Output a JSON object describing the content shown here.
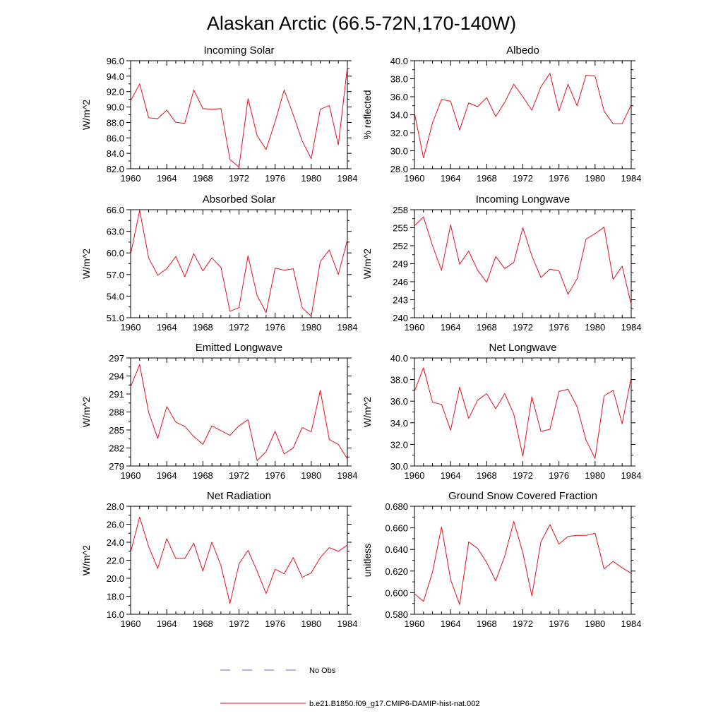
{
  "title": "Alaskan Arctic (66.5-72N,170-140W)",
  "colors": {
    "series": "#e8101c",
    "no_obs": "#5a6bd0",
    "axis": "#000000"
  },
  "legend": {
    "entries": [
      {
        "label": "No Obs",
        "style": "dashed",
        "color": "#5a6bd0"
      },
      {
        "label": "b.e21.B1850.f09_g17.CMIP6-DAMIP-hist-nat.002",
        "style": "solid",
        "color": "#e8101c"
      }
    ]
  },
  "chart_data": [
    {
      "type": "line",
      "title": "Incoming Solar",
      "ylabel": "W/m^2",
      "xlim": [
        1960,
        1984
      ],
      "ylim": [
        82,
        96
      ],
      "xticks": [
        1960,
        1964,
        1968,
        1972,
        1976,
        1980,
        1984
      ],
      "xtick_labels": [
        "1960",
        "1964",
        "1968",
        "1972",
        "1976",
        "1980",
        "1984"
      ],
      "yticks": [
        82,
        84,
        86,
        88,
        90,
        92,
        94,
        96
      ],
      "ytick_labels": [
        "82.0",
        "84.0",
        "86.0",
        "88.0",
        "90.0",
        "92.0",
        "94.0",
        "96.0"
      ],
      "series": [
        {
          "name": "b.e21.B1850.f09_g17.CMIP6-DAMIP-hist-nat.002",
          "x": [
            1960,
            1961,
            1962,
            1963,
            1964,
            1965,
            1966,
            1967,
            1968,
            1969,
            1970,
            1971,
            1972,
            1973,
            1974,
            1975,
            1976,
            1977,
            1978,
            1979,
            1980,
            1981,
            1982,
            1983,
            1984
          ],
          "y": [
            90.8,
            93.0,
            88.6,
            88.5,
            89.6,
            88.0,
            87.9,
            92.2,
            89.8,
            89.7,
            89.8,
            83.2,
            82.2,
            91.1,
            86.3,
            84.5,
            88.1,
            92.2,
            89.0,
            85.6,
            83.3,
            89.7,
            90.2,
            85.1,
            95.2
          ]
        }
      ]
    },
    {
      "type": "line",
      "title": "Albedo",
      "ylabel": "% reflected",
      "xlim": [
        1960,
        1984
      ],
      "ylim": [
        28,
        40
      ],
      "xticks": [
        1960,
        1964,
        1968,
        1972,
        1976,
        1980,
        1984
      ],
      "xtick_labels": [
        "1960",
        "1964",
        "1968",
        "1972",
        "1976",
        "1980",
        "1984"
      ],
      "yticks": [
        28,
        30,
        32,
        34,
        36,
        38,
        40
      ],
      "ytick_labels": [
        "28.0",
        "30.0",
        "32.0",
        "34.0",
        "36.0",
        "38.0",
        "40.0"
      ],
      "series": [
        {
          "name": "b.e21.B1850.f09_g17.CMIP6-DAMIP-hist-nat.002",
          "x": [
            1960,
            1961,
            1962,
            1963,
            1964,
            1965,
            1966,
            1967,
            1968,
            1969,
            1970,
            1971,
            1972,
            1973,
            1974,
            1975,
            1976,
            1977,
            1978,
            1979,
            1980,
            1981,
            1982,
            1983,
            1984
          ],
          "y": [
            34.2,
            29.2,
            33.1,
            35.7,
            35.5,
            32.3,
            35.3,
            34.9,
            35.9,
            33.8,
            35.4,
            37.4,
            36.0,
            34.5,
            37.1,
            38.6,
            34.4,
            37.4,
            35.0,
            38.4,
            38.3,
            34.4,
            33.0,
            33.0,
            35.1
          ]
        }
      ]
    },
    {
      "type": "line",
      "title": "Absorbed Solar",
      "ylabel": "W/m^2",
      "xlim": [
        1960,
        1984
      ],
      "ylim": [
        51,
        66
      ],
      "xticks": [
        1960,
        1964,
        1968,
        1972,
        1976,
        1980,
        1984
      ],
      "xtick_labels": [
        "1960",
        "1964",
        "1968",
        "1972",
        "1976",
        "1980",
        "1984"
      ],
      "yticks": [
        51,
        54,
        57,
        60,
        63,
        66
      ],
      "ytick_labels": [
        "51.0",
        "54.0",
        "57.0",
        "60.0",
        "63.0",
        "66.0"
      ],
      "series": [
        {
          "name": "b.e21.B1850.f09_g17.CMIP6-DAMIP-hist-nat.002",
          "x": [
            1960,
            1961,
            1962,
            1963,
            1964,
            1965,
            1966,
            1967,
            1968,
            1969,
            1970,
            1971,
            1972,
            1973,
            1974,
            1975,
            1976,
            1977,
            1978,
            1979,
            1980,
            1981,
            1982,
            1983,
            1984
          ],
          "y": [
            59.8,
            65.9,
            59.3,
            56.9,
            57.8,
            59.5,
            56.7,
            59.9,
            57.5,
            59.3,
            58.0,
            51.9,
            52.4,
            59.6,
            54.1,
            51.7,
            57.9,
            57.6,
            57.8,
            52.4,
            51.2,
            58.8,
            60.4,
            57.0,
            61.8
          ]
        }
      ]
    },
    {
      "type": "line",
      "title": "Incoming Longwave",
      "ylabel": "W/m^2",
      "xlim": [
        1960,
        1984
      ],
      "ylim": [
        240,
        258
      ],
      "xticks": [
        1960,
        1964,
        1968,
        1972,
        1976,
        1980,
        1984
      ],
      "xtick_labels": [
        "1960",
        "1964",
        "1968",
        "1972",
        "1976",
        "1980",
        "1984"
      ],
      "yticks": [
        240,
        243,
        246,
        249,
        252,
        255,
        258
      ],
      "ytick_labels": [
        "240",
        "243",
        "246",
        "249",
        "252",
        "255",
        "258"
      ],
      "series": [
        {
          "name": "b.e21.B1850.f09_g17.CMIP6-DAMIP-hist-nat.002",
          "x": [
            1960,
            1961,
            1962,
            1963,
            1964,
            1965,
            1966,
            1967,
            1968,
            1969,
            1970,
            1971,
            1972,
            1973,
            1974,
            1975,
            1976,
            1977,
            1978,
            1979,
            1980,
            1981,
            1982,
            1983,
            1984
          ],
          "y": [
            255.3,
            256.8,
            252.0,
            247.9,
            255.5,
            248.9,
            251.1,
            247.9,
            245.9,
            250.2,
            248.2,
            249.2,
            255.0,
            250.3,
            246.7,
            248.1,
            247.8,
            243.9,
            246.5,
            253.1,
            254.0,
            255.1,
            246.4,
            248.6,
            242.2
          ]
        }
      ]
    },
    {
      "type": "line",
      "title": "Emitted Longwave",
      "ylabel": "W/m^2",
      "xlim": [
        1960,
        1984
      ],
      "ylim": [
        279,
        297
      ],
      "xticks": [
        1960,
        1964,
        1968,
        1972,
        1976,
        1980,
        1984
      ],
      "xtick_labels": [
        "1960",
        "1964",
        "1968",
        "1972",
        "1976",
        "1980",
        "1984"
      ],
      "yticks": [
        279,
        282,
        285,
        288,
        291,
        294,
        297
      ],
      "ytick_labels": [
        "279",
        "282",
        "285",
        "288",
        "291",
        "294",
        "297"
      ],
      "series": [
        {
          "name": "b.e21.B1850.f09_g17.CMIP6-DAMIP-hist-nat.002",
          "x": [
            1960,
            1961,
            1962,
            1963,
            1964,
            1965,
            1966,
            1967,
            1968,
            1969,
            1970,
            1971,
            1972,
            1973,
            1974,
            1975,
            1976,
            1977,
            1978,
            1979,
            1980,
            1981,
            1982,
            1983,
            1984
          ],
          "y": [
            292.2,
            295.9,
            287.9,
            283.6,
            288.9,
            286.3,
            285.6,
            283.9,
            282.6,
            285.7,
            284.9,
            284.1,
            285.7,
            286.7,
            279.9,
            281.4,
            284.8,
            281.0,
            282.0,
            285.4,
            284.7,
            291.6,
            283.4,
            282.6,
            280.2
          ]
        }
      ]
    },
    {
      "type": "line",
      "title": "Net Longwave",
      "ylabel": "W/m^2",
      "xlim": [
        1960,
        1984
      ],
      "ylim": [
        30,
        40
      ],
      "xticks": [
        1960,
        1964,
        1968,
        1972,
        1976,
        1980,
        1984
      ],
      "xtick_labels": [
        "1960",
        "1964",
        "1968",
        "1972",
        "1976",
        "1980",
        "1984"
      ],
      "yticks": [
        30,
        32,
        34,
        36,
        38,
        40
      ],
      "ytick_labels": [
        "30.0",
        "32.0",
        "34.0",
        "36.0",
        "38.0",
        "40.0"
      ],
      "series": [
        {
          "name": "b.e21.B1850.f09_g17.CMIP6-DAMIP-hist-nat.002",
          "x": [
            1960,
            1961,
            1962,
            1963,
            1964,
            1965,
            1966,
            1967,
            1968,
            1969,
            1970,
            1971,
            1972,
            1973,
            1974,
            1975,
            1976,
            1977,
            1978,
            1979,
            1980,
            1981,
            1982,
            1983,
            1984
          ],
          "y": [
            36.9,
            39.1,
            35.9,
            35.7,
            33.3,
            37.3,
            34.4,
            36.1,
            36.7,
            35.3,
            36.7,
            34.8,
            30.9,
            36.4,
            33.2,
            33.4,
            36.9,
            37.1,
            35.5,
            32.4,
            30.7,
            36.5,
            37.0,
            33.9,
            38.2
          ]
        }
      ]
    },
    {
      "type": "line",
      "title": "Net Radiation",
      "ylabel": "W/m^2",
      "xlim": [
        1960,
        1984
      ],
      "ylim": [
        16,
        28
      ],
      "xticks": [
        1960,
        1964,
        1968,
        1972,
        1976,
        1980,
        1984
      ],
      "xtick_labels": [
        "1960",
        "1964",
        "1968",
        "1972",
        "1976",
        "1980",
        "1984"
      ],
      "yticks": [
        16,
        18,
        20,
        22,
        24,
        26,
        28
      ],
      "ytick_labels": [
        "16.0",
        "18.0",
        "20.0",
        "22.0",
        "24.0",
        "26.0",
        "28.0"
      ],
      "series": [
        {
          "name": "b.e21.B1850.f09_g17.CMIP6-DAMIP-hist-nat.002",
          "x": [
            1960,
            1961,
            1962,
            1963,
            1964,
            1965,
            1966,
            1967,
            1968,
            1969,
            1970,
            1971,
            1972,
            1973,
            1974,
            1975,
            1976,
            1977,
            1978,
            1979,
            1980,
            1981,
            1982,
            1983,
            1984
          ],
          "y": [
            22.9,
            26.8,
            23.5,
            21.1,
            24.4,
            22.2,
            22.2,
            23.9,
            20.8,
            24.0,
            21.4,
            17.2,
            21.6,
            23.1,
            20.8,
            18.3,
            21.0,
            20.5,
            22.3,
            20.1,
            20.6,
            22.3,
            23.4,
            23.0,
            23.7
          ]
        }
      ]
    },
    {
      "type": "line",
      "title": "Ground Snow Covered Fraction",
      "ylabel": "unitless",
      "xlim": [
        1960,
        1984
      ],
      "ylim": [
        0.58,
        0.68
      ],
      "xticks": [
        1960,
        1964,
        1968,
        1972,
        1976,
        1980,
        1984
      ],
      "xtick_labels": [
        "1960",
        "1964",
        "1968",
        "1972",
        "1976",
        "1980",
        "1984"
      ],
      "yticks": [
        0.58,
        0.6,
        0.62,
        0.64,
        0.66,
        0.68
      ],
      "ytick_labels": [
        "0.580",
        "0.600",
        "0.620",
        "0.640",
        "0.660",
        "0.680"
      ],
      "series": [
        {
          "name": "b.e21.B1850.f09_g17.CMIP6-DAMIP-hist-nat.002",
          "x": [
            1960,
            1961,
            1962,
            1963,
            1964,
            1965,
            1966,
            1967,
            1968,
            1969,
            1970,
            1971,
            1972,
            1973,
            1974,
            1975,
            1976,
            1977,
            1978,
            1979,
            1980,
            1981,
            1982,
            1983,
            1984
          ],
          "y": [
            0.599,
            0.592,
            0.619,
            0.661,
            0.612,
            0.589,
            0.647,
            0.641,
            0.628,
            0.611,
            0.634,
            0.666,
            0.637,
            0.597,
            0.647,
            0.663,
            0.645,
            0.652,
            0.653,
            0.653,
            0.655,
            0.622,
            0.629,
            0.623,
            0.618
          ]
        }
      ]
    }
  ]
}
